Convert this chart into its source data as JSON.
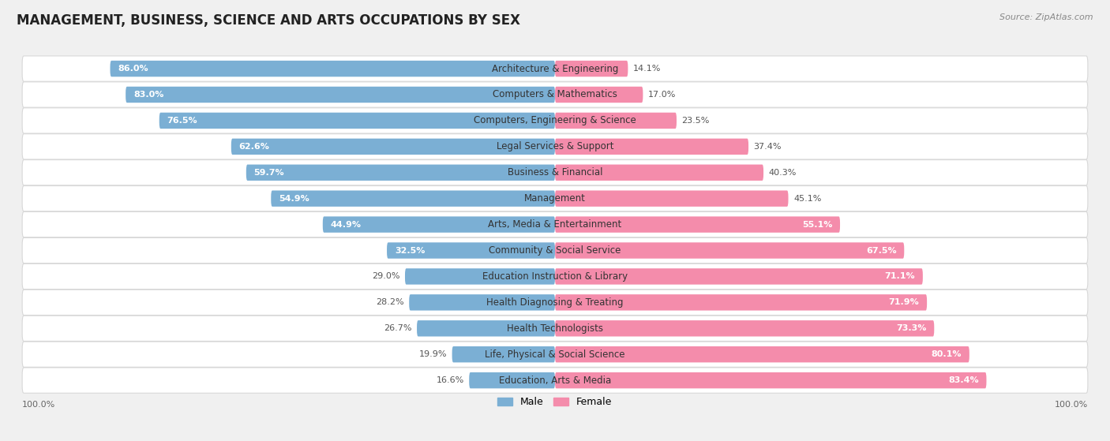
{
  "title": "MANAGEMENT, BUSINESS, SCIENCE AND ARTS OCCUPATIONS BY SEX",
  "source": "Source: ZipAtlas.com",
  "categories": [
    "Architecture & Engineering",
    "Computers & Mathematics",
    "Computers, Engineering & Science",
    "Legal Services & Support",
    "Business & Financial",
    "Management",
    "Arts, Media & Entertainment",
    "Community & Social Service",
    "Education Instruction & Library",
    "Health Diagnosing & Treating",
    "Health Technologists",
    "Life, Physical & Social Science",
    "Education, Arts & Media"
  ],
  "male_pct": [
    86.0,
    83.0,
    76.5,
    62.6,
    59.7,
    54.9,
    44.9,
    32.5,
    29.0,
    28.2,
    26.7,
    19.9,
    16.6
  ],
  "female_pct": [
    14.1,
    17.0,
    23.5,
    37.4,
    40.3,
    45.1,
    55.1,
    67.5,
    71.1,
    71.9,
    73.3,
    80.1,
    83.4
  ],
  "male_color": "#7BAFD4",
  "female_color": "#F48CAB",
  "bg_color": "#f0f0f0",
  "bar_bg_color": "#ffffff",
  "row_edge_color": "#d8d8d8",
  "title_fontsize": 12,
  "label_fontsize": 8.5,
  "pct_fontsize": 8,
  "legend_fontsize": 9,
  "source_fontsize": 8,
  "male_label_white_threshold": 55,
  "female_label_white_threshold": 55
}
